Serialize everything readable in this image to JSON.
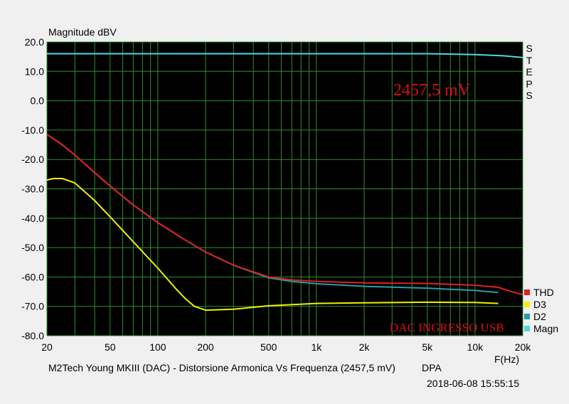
{
  "chart_data": {
    "type": "line",
    "ylabel": "Magnitude dBV",
    "xlabel": "F(Hz)",
    "title": "M2Tech Young MKIII (DAC) - Distorsione Armonica Vs Frequenza (2457,5 mV)",
    "tag": "DPA",
    "timestamp": "2018-06-08 15:55:15",
    "annotation_level": "2457,5 mV",
    "annotation_source": "DAC INGRESSO USB",
    "steps_label": "STEPS",
    "x_scale": "log",
    "xlim": [
      20,
      20000
    ],
    "ylim": [
      -80,
      20
    ],
    "y_ticks": [
      "20.0",
      "10.0",
      "0.0",
      "-10.0",
      "-20.0",
      "-30.0",
      "-40.0",
      "-50.0",
      "-60.0",
      "-70.0",
      "-80.0"
    ],
    "x_ticks": [
      "20",
      "50",
      "100",
      "200",
      "500",
      "1k",
      "2k",
      "5k",
      "10k",
      "20k"
    ],
    "grid": true,
    "legend_position": "bottom-right",
    "colors": {
      "background": "#000000",
      "grid": "#2f8f2f",
      "THD": "#e02020",
      "D3": "#f0f000",
      "D2": "#20a0a8",
      "Magn": "#50d8e0",
      "annotation": "#d81010"
    },
    "series": [
      {
        "name": "THD",
        "x": [
          20,
          25,
          30,
          40,
          50,
          70,
          100,
          150,
          200,
          300,
          500,
          700,
          1000,
          2000,
          5000,
          10000,
          14000,
          17000,
          20000
        ],
        "y": [
          -11.5,
          -15,
          -18.5,
          -24.5,
          -29,
          -35.5,
          -41.5,
          -47.5,
          -51.5,
          -56,
          -60,
          -61,
          -61.5,
          -62,
          -62.2,
          -62.8,
          -63.5,
          -65,
          -66
        ]
      },
      {
        "name": "D3",
        "x": [
          20,
          22,
          25,
          30,
          40,
          50,
          70,
          100,
          130,
          150,
          170,
          200,
          300,
          500,
          1000,
          2000,
          5000,
          10000,
          14000
        ],
        "y": [
          -27,
          -26.5,
          -26.5,
          -28,
          -34,
          -39.5,
          -48,
          -57,
          -64,
          -67.5,
          -70,
          -71.3,
          -71,
          -69.8,
          -69,
          -68.8,
          -68.6,
          -68.7,
          -69
        ]
      },
      {
        "name": "D2",
        "x": [
          20,
          25,
          30,
          40,
          50,
          70,
          100,
          150,
          200,
          300,
          500,
          700,
          1000,
          2000,
          5000,
          10000,
          14000
        ],
        "y": [
          -11.5,
          -15,
          -18.5,
          -24.5,
          -29,
          -35.5,
          -41.5,
          -47.5,
          -51.5,
          -56,
          -60.3,
          -61.5,
          -62.3,
          -63.2,
          -63.8,
          -64.6,
          -65.3
        ]
      },
      {
        "name": "Magn",
        "x": [
          20,
          100,
          1000,
          5000,
          10000,
          15000,
          20000
        ],
        "y": [
          16,
          16,
          16,
          16,
          15.7,
          15.3,
          14.7
        ]
      }
    ]
  }
}
